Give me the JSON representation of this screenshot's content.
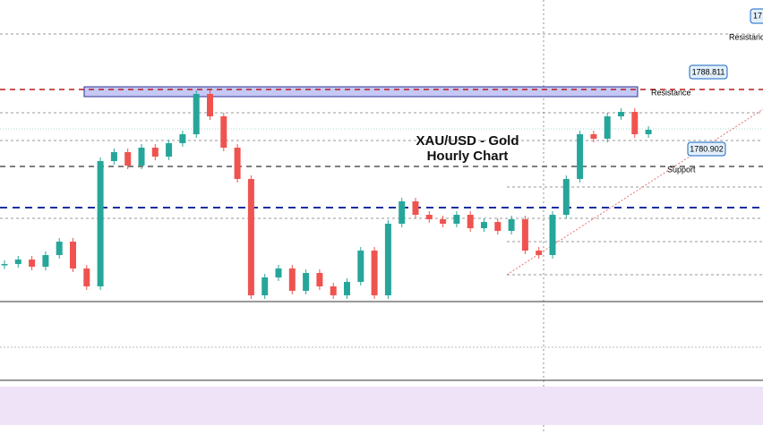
{
  "chart_data": {
    "type": "candlestick",
    "title_lines": [
      "XAU/USD - Gold",
      "Hourly Chart"
    ],
    "ylim": [
      1767.01,
      1798.01
    ],
    "up_color": "#26a69a",
    "down_color": "#ef5350",
    "closes": [
      1770.87,
      1771.33,
      1770.59,
      1771.79,
      1773.17,
      1770.41,
      1768.57,
      1781.45,
      1782.37,
      1780.99,
      1782.83,
      1781.91,
      1783.29,
      1784.21,
      1788.35,
      1786.05,
      1782.83,
      1779.61,
      1767.65,
      1769.49,
      1770.41,
      1768.11,
      1769.95,
      1768.57,
      1767.65,
      1769.03,
      1772.25,
      1767.65,
      1775.01,
      1777.31,
      1775.93,
      1775.47,
      1775.01,
      1775.93,
      1774.55,
      1775.19,
      1774.27,
      1775.47,
      1772.25,
      1771.79,
      1775.93,
      1779.61,
      1784.21,
      1783.75,
      1786.05,
      1786.51,
      1784.21,
      1784.67
    ],
    "levels": [
      {
        "value": 1788.811,
        "label": "1788.811",
        "name": "Resistance",
        "color": "#b71c1c"
      },
      {
        "value": 1780.902,
        "label": "1780.902",
        "name": "Support",
        "color": "#555555"
      }
    ],
    "top_tag": {
      "label": "17",
      "name": "Resistance"
    }
  }
}
